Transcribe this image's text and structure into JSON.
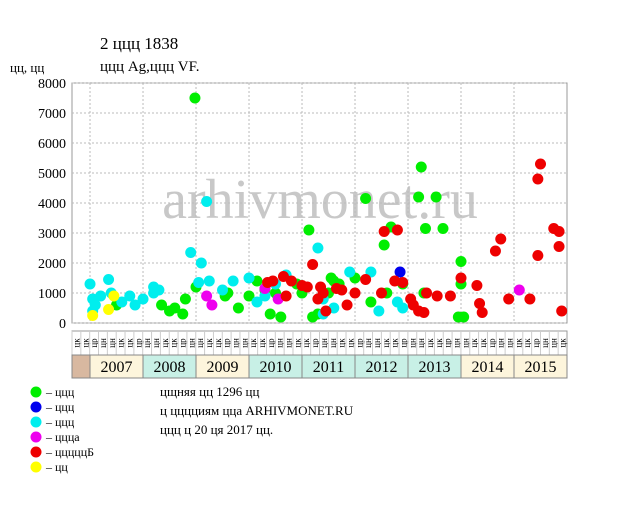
{
  "chart_data": {
    "type": "scatter",
    "title": "2 ццц 1838",
    "subtitle": "ццц Ag,ццц VF.",
    "y_label": "цц, цц",
    "watermark": "arhivmonet.ru",
    "xlim": [
      2006.66,
      2016.0
    ],
    "ylim": [
      0,
      8000
    ],
    "yticks": [
      0,
      1000,
      2000,
      3000,
      4000,
      5000,
      6000,
      7000,
      8000
    ],
    "grid": true,
    "years": [
      "2007",
      "2008",
      "2009",
      "2010",
      "2011",
      "2012",
      "2013",
      "2014",
      "2015"
    ],
    "year_starts": [
      2007,
      2008,
      2009,
      2010,
      2011,
      2012,
      2013,
      2014,
      2015
    ],
    "year_colors": [
      "#fdf5dc",
      "#c8f0e6",
      "#fdf5dc",
      "#c8f0e6",
      "#c8f0e6",
      "#c8f0e6",
      "#c8f0e6",
      "#fdf5dc",
      "#fdf5dc"
    ],
    "column_labels": [
      "цк",
      "цк",
      "цр",
      "цн",
      "цн",
      "цк",
      "цк",
      "цр",
      "цн",
      "цн",
      "цк",
      "цк",
      "цр",
      "цн",
      "цн",
      "цк",
      "цк",
      "цр",
      "цн",
      "цн",
      "цк",
      "цк",
      "цр",
      "цн",
      "цн",
      "цк",
      "цк",
      "цр",
      "цн",
      "цн",
      "цк",
      "цк",
      "цр",
      "цн",
      "цн",
      "цк",
      "цк",
      "цр",
      "цн",
      "цн",
      "цк",
      "цк",
      "цр",
      "цн",
      "цн",
      "цк",
      "цк",
      "цр",
      "цн",
      "цн",
      "цк",
      "цк",
      "цр",
      "цн",
      "цн",
      "цк"
    ],
    "series": [
      {
        "name": "– ццц",
        "color": "#00ee00",
        "x": [
          2008.98,
          2011.13,
          2012.2,
          2012.55,
          2012.68,
          2013.25,
          2013.33,
          2013.53,
          2013.66,
          2013.2,
          2014.0,
          2014.0,
          2013.95,
          2014.05,
          2011.55,
          2011.6,
          2011.7,
          2011.5,
          2011.3,
          2011.2,
          2012.0,
          2012.3,
          2012.6,
          2012.9,
          2013.3,
          2010.4,
          2010.6,
          2010.15,
          2010.0,
          2009.8,
          2009.55,
          2009.6,
          2009.0,
          2008.5,
          2008.6,
          2008.75,
          2008.8,
          2008.35,
          2007.5,
          2010.3,
          2010.5,
          2010.9,
          2011.0
        ],
        "values": [
          7500,
          3100,
          4150,
          2600,
          3200,
          5200,
          3150,
          4200,
          3150,
          4200,
          2050,
          1300,
          200,
          200,
          1500,
          1400,
          1300,
          1000,
          300,
          200,
          1500,
          700,
          1000,
          1300,
          1000,
          300,
          200,
          1400,
          900,
          500,
          900,
          1000,
          1200,
          400,
          500,
          300,
          800,
          600,
          600,
          1100,
          1000,
          1300,
          1000
        ]
      },
      {
        "name": "– ццц",
        "color": "#0000ee",
        "x": [
          2012.85
        ],
        "values": [
          1700
        ]
      },
      {
        "name": "– ццц",
        "color": "#00eeee",
        "x": [
          2007.0,
          2007.05,
          2007.1,
          2007.2,
          2007.35,
          2007.4,
          2007.6,
          2007.85,
          2008.0,
          2008.2,
          2008.3,
          2008.9,
          2009.1,
          2009.2,
          2009.25,
          2009.05,
          2009.5,
          2009.7,
          2010.0,
          2010.15,
          2010.3,
          2010.5,
          2010.7,
          2011.3,
          2011.4,
          2011.6,
          2011.9,
          2012.3,
          2012.45,
          2012.9,
          2007.05,
          2007.75,
          2008.2,
          2011.4,
          2012.8
        ],
        "values": [
          1300,
          800,
          600,
          900,
          1450,
          1000,
          700,
          600,
          800,
          1200,
          1100,
          2350,
          2000,
          4050,
          1400,
          1350,
          1100,
          1400,
          1500,
          700,
          900,
          1300,
          1600,
          2500,
          800,
          500,
          1700,
          1700,
          400,
          500,
          400,
          900,
          1000,
          300,
          700
        ]
      },
      {
        "name": "– ццца",
        "color": "#ee00ee",
        "x": [
          2009.2,
          2009.3,
          2010.3,
          2010.55,
          2015.1
        ],
        "values": [
          900,
          600,
          1150,
          800,
          1100
        ]
      },
      {
        "name": "– цццццБ",
        "color": "#ee0000",
        "x": [
          2010.35,
          2010.45,
          2010.65,
          2010.8,
          2010.7,
          2011.0,
          2011.1,
          2011.2,
          2011.3,
          2011.35,
          2011.4,
          2011.45,
          2011.65,
          2011.75,
          2011.85,
          2012.0,
          2012.2,
          2012.5,
          2012.55,
          2012.75,
          2012.8,
          2012.9,
          2013.05,
          2013.1,
          2013.2,
          2013.3,
          2013.35,
          2013.55,
          2013.8,
          2014.0,
          2014.3,
          2014.35,
          2014.4,
          2014.65,
          2014.75,
          2014.9,
          2015.3,
          2015.45,
          2015.5,
          2015.45,
          2015.75,
          2015.85,
          2015.85,
          2015.9
        ],
        "values": [
          1350,
          1400,
          1550,
          1400,
          900,
          1250,
          1200,
          1950,
          800,
          1200,
          1000,
          400,
          1150,
          1100,
          600,
          1000,
          1450,
          1000,
          3050,
          1400,
          3100,
          1350,
          800,
          600,
          400,
          350,
          1000,
          900,
          900,
          1500,
          1250,
          650,
          350,
          2400,
          2800,
          800,
          800,
          4800,
          5300,
          2250,
          3150,
          3050,
          2550,
          400
        ]
      },
      {
        "name": "– цц",
        "color": "#ffff00",
        "x": [
          2007.05,
          2007.35,
          2007.45
        ],
        "values": [
          250,
          450,
          900
        ]
      }
    ],
    "notes": [
      "цщняя цц 1296 цц",
      "ц цццциям цца ARHIVMONET.RU",
      "ццц ц 20 ця 2017 цц."
    ]
  }
}
